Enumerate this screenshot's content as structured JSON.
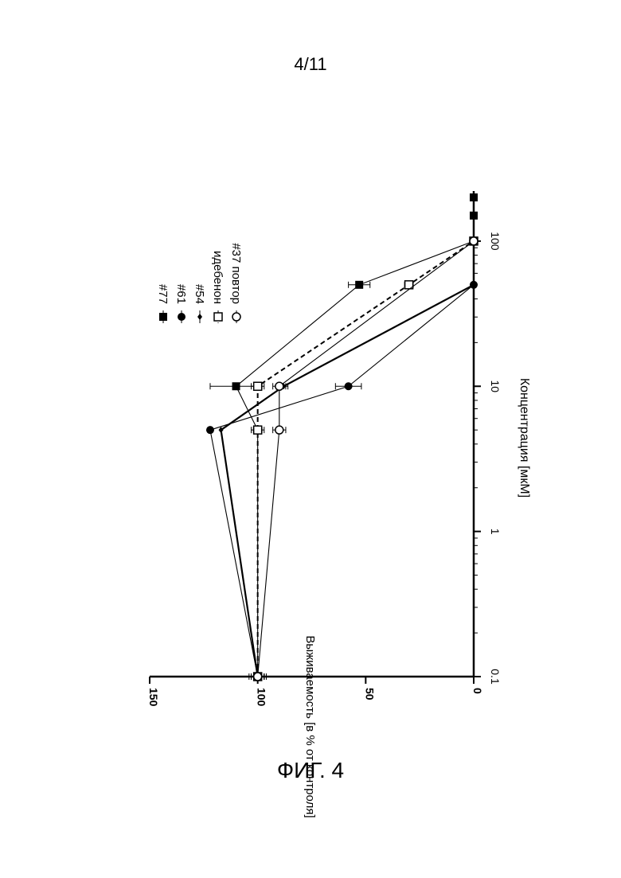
{
  "page": {
    "page_number": "4/11",
    "figure_caption": "ФИГ. 4"
  },
  "chart_data": {
    "type": "line",
    "orientation": "rotated 90° clockwise",
    "x_scale": "log",
    "xlabel": "Концентрация [мкМ]",
    "ylabel": "Выживаемость [в % от контроля]",
    "xlim": [
      0.1,
      200
    ],
    "ylim": [
      0,
      150
    ],
    "x_ticks": [
      0.1,
      1,
      10,
      100
    ],
    "x_tick_labels": [
      "0.1",
      "1",
      "10",
      "100"
    ],
    "y_ticks": [
      0,
      50,
      100,
      150
    ],
    "y_tick_labels": [
      "0",
      "50",
      "100",
      "150"
    ],
    "grid": false,
    "legend_position": "top-right",
    "series": [
      {
        "name": "#77",
        "marker": "filled-square",
        "line": "solid",
        "x": [
          0.1,
          5,
          10,
          50,
          100,
          150,
          200
        ],
        "y": [
          100,
          100,
          110,
          53,
          0,
          0,
          0
        ],
        "err": [
          3,
          2,
          12,
          5,
          0,
          0,
          0
        ]
      },
      {
        "name": "#61",
        "marker": "filled-circle",
        "line": "solid",
        "x": [
          0.1,
          5,
          10,
          50
        ],
        "y": [
          100,
          122,
          58,
          0
        ],
        "err": [
          3,
          0,
          6,
          0
        ]
      },
      {
        "name": "#54",
        "marker": "small-diamond",
        "line": "solid-thick",
        "x": [
          0.1,
          5,
          10,
          50
        ],
        "y": [
          100,
          117,
          88,
          0
        ],
        "err": [
          3,
          0,
          2,
          0
        ]
      },
      {
        "name": "идебенон",
        "marker": "open-square",
        "line": "dashed",
        "x": [
          0.1,
          5,
          10,
          50,
          100
        ],
        "y": [
          100,
          100,
          100,
          30,
          0
        ],
        "err": [
          3,
          3,
          3,
          2,
          0
        ]
      },
      {
        "name": "#37 повтор",
        "marker": "open-circle",
        "line": "solid",
        "x": [
          0.1,
          5,
          10,
          100
        ],
        "y": [
          100,
          90,
          90,
          0
        ],
        "err": [
          4,
          3,
          3,
          0
        ]
      }
    ]
  }
}
